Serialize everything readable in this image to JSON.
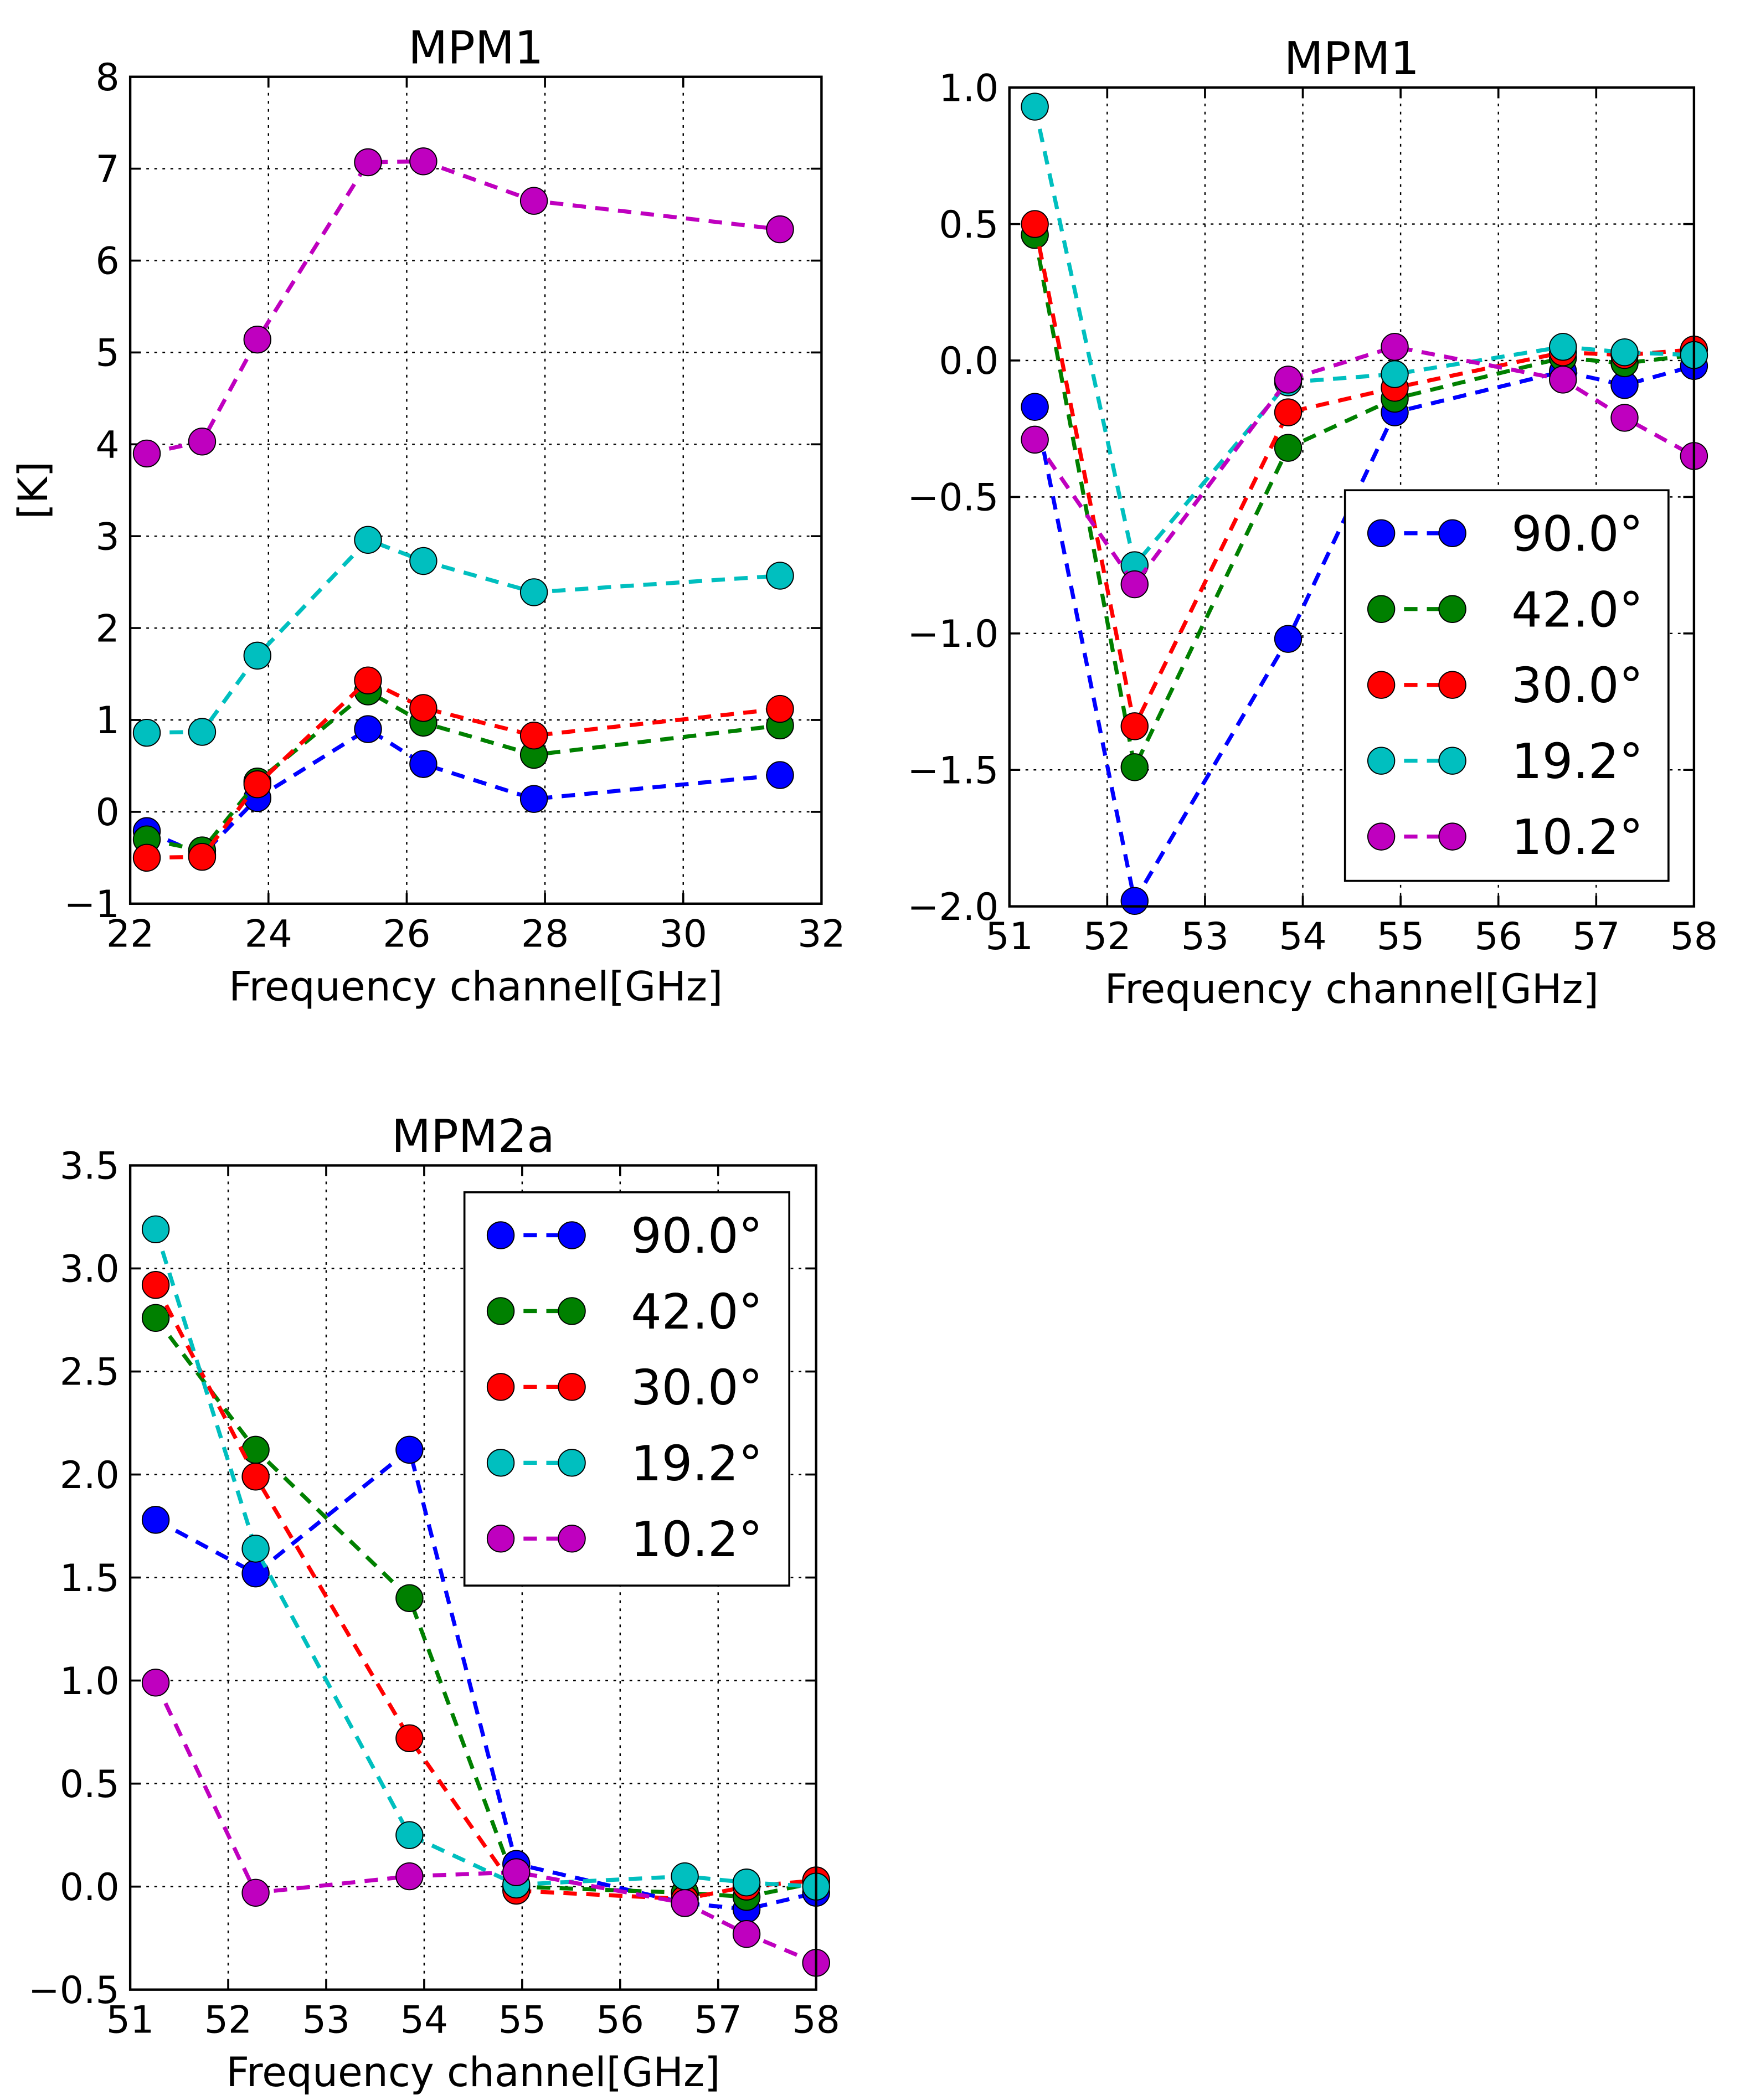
{
  "chart_data": [
    {
      "type": "line",
      "title": "MPM1",
      "xlabel": "Frequency channel[GHz]",
      "ylabel": "[K]",
      "xlim": [
        22,
        32
      ],
      "ylim": [
        -1,
        8
      ],
      "xticks": [
        22,
        24,
        26,
        28,
        30,
        32
      ],
      "yticks": [
        -1,
        0,
        1,
        2,
        3,
        4,
        5,
        6,
        7,
        8
      ],
      "tick_decimals": 0,
      "grid": true,
      "legend": null,
      "x": [
        22.24,
        23.04,
        23.84,
        25.44,
        26.24,
        27.84,
        31.4
      ],
      "series": [
        {
          "name": "90.0°",
          "color": "#0000ff",
          "values": [
            -0.21,
            -0.47,
            0.15,
            0.9,
            0.52,
            0.14,
            0.4
          ]
        },
        {
          "name": "42.0°",
          "color": "#008000",
          "values": [
            -0.3,
            -0.42,
            0.33,
            1.31,
            0.97,
            0.62,
            0.94
          ]
        },
        {
          "name": "30.0°",
          "color": "#ff0000",
          "values": [
            -0.5,
            -0.49,
            0.3,
            1.43,
            1.13,
            0.83,
            1.12
          ]
        },
        {
          "name": "19.2°",
          "color": "#00bfbf",
          "values": [
            0.86,
            0.87,
            1.7,
            2.96,
            2.73,
            2.39,
            2.57
          ]
        },
        {
          "name": "10.2°",
          "color": "#bf00bf",
          "values": [
            3.9,
            4.03,
            5.14,
            7.07,
            7.08,
            6.65,
            6.34
          ]
        }
      ]
    },
    {
      "type": "line",
      "title": "MPM1",
      "xlabel": "Frequency channel[GHz]",
      "ylabel": "",
      "xlim": [
        51,
        58
      ],
      "ylim": [
        -2,
        1
      ],
      "xticks": [
        51,
        52,
        53,
        54,
        55,
        56,
        57,
        58
      ],
      "yticks": [
        -2.0,
        -1.5,
        -1.0,
        -0.5,
        0.0,
        0.5,
        1.0
      ],
      "tick_decimals": 1,
      "grid": true,
      "legend": "lower-right",
      "x": [
        51.26,
        52.28,
        53.85,
        54.94,
        56.66,
        57.29,
        58.0
      ],
      "series": [
        {
          "name": "90.0°",
          "color": "#0000ff",
          "values": [
            -0.17,
            -1.98,
            -1.02,
            -0.19,
            -0.04,
            -0.09,
            -0.02
          ]
        },
        {
          "name": "42.0°",
          "color": "#008000",
          "values": [
            0.46,
            -1.49,
            -0.32,
            -0.14,
            0.01,
            -0.01,
            0.02
          ]
        },
        {
          "name": "30.0°",
          "color": "#ff0000",
          "values": [
            0.5,
            -1.34,
            -0.19,
            -0.1,
            0.03,
            0.02,
            0.04
          ]
        },
        {
          "name": "19.2°",
          "color": "#00bfbf",
          "values": [
            0.93,
            -0.75,
            -0.08,
            -0.05,
            0.05,
            0.03,
            0.02
          ]
        },
        {
          "name": "10.2°",
          "color": "#bf00bf",
          "values": [
            -0.29,
            -0.82,
            -0.07,
            0.05,
            -0.07,
            -0.21,
            -0.35
          ]
        }
      ]
    },
    {
      "type": "line",
      "title": "MPM2a",
      "xlabel": "Frequency channel[GHz]",
      "ylabel": "",
      "xlim": [
        51,
        58
      ],
      "ylim": [
        -0.5,
        3.5
      ],
      "xticks": [
        51,
        52,
        53,
        54,
        55,
        56,
        57,
        58
      ],
      "yticks": [
        -0.5,
        0.0,
        0.5,
        1.0,
        1.5,
        2.0,
        2.5,
        3.0,
        3.5
      ],
      "tick_decimals": 1,
      "grid": true,
      "legend": "upper-right",
      "x": [
        51.26,
        52.28,
        53.85,
        54.94,
        56.66,
        57.29,
        58.0
      ],
      "series": [
        {
          "name": "90.0°",
          "color": "#0000ff",
          "values": [
            1.78,
            1.52,
            2.12,
            0.11,
            -0.08,
            -0.11,
            -0.03
          ]
        },
        {
          "name": "42.0°",
          "color": "#008000",
          "values": [
            2.76,
            2.12,
            1.4,
            0.0,
            -0.03,
            -0.05,
            0.02
          ]
        },
        {
          "name": "30.0°",
          "color": "#ff0000",
          "values": [
            2.92,
            1.99,
            0.72,
            -0.02,
            -0.06,
            0.0,
            0.03
          ]
        },
        {
          "name": "19.2°",
          "color": "#00bfbf",
          "values": [
            3.19,
            1.64,
            0.25,
            0.01,
            0.05,
            0.02,
            0.0
          ]
        },
        {
          "name": "10.2°",
          "color": "#bf00bf",
          "values": [
            0.99,
            -0.03,
            0.05,
            0.07,
            -0.08,
            -0.23,
            -0.37
          ]
        }
      ]
    }
  ]
}
